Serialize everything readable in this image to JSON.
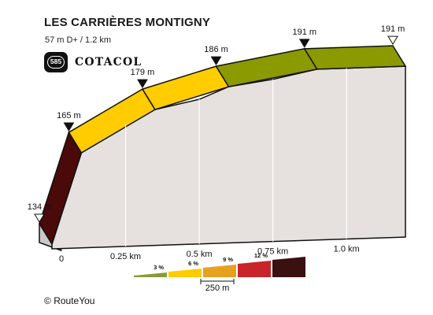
{
  "header": {
    "title": "LES CARRIÈRES MONTIGNY",
    "subtitle": "57 m D+ / 1.2 km"
  },
  "badge": {
    "number": "585",
    "brand": "COTACOL"
  },
  "footer": {
    "copyright_symbol": "©",
    "copyright_text": "RouteYou"
  },
  "chart_data": {
    "type": "area",
    "style": "3d-elevation-profile",
    "x_unit": "km",
    "y_unit": "m",
    "points": [
      {
        "x": 0.0,
        "y": 134,
        "label": "134 m"
      },
      {
        "x": 0.1,
        "y": 165,
        "label": "165 m"
      },
      {
        "x": 0.2,
        "y": 172
      },
      {
        "x": 0.35,
        "y": 179,
        "label": "179 m"
      },
      {
        "x": 0.5,
        "y": 182
      },
      {
        "x": 0.6,
        "y": 186,
        "label": "186 m"
      },
      {
        "x": 0.75,
        "y": 188
      },
      {
        "x": 0.9,
        "y": 191,
        "label": "191 m"
      },
      {
        "x": 1.0,
        "y": 191
      },
      {
        "x": 1.2,
        "y": 191,
        "label": "191 m"
      }
    ],
    "segments": [
      {
        "from": 0.0,
        "to": 0.1,
        "color": "#4a0a0a"
      },
      {
        "from": 0.1,
        "to": 0.35,
        "color": "#ffcc00"
      },
      {
        "from": 0.35,
        "to": 0.6,
        "color": "#ffcc00"
      },
      {
        "from": 0.6,
        "to": 0.9,
        "color": "#8a9a00"
      },
      {
        "from": 0.9,
        "to": 1.2,
        "color": "#8a9a00"
      }
    ],
    "x_ticks": [
      {
        "value": 0,
        "label": "0"
      },
      {
        "value": 0.25,
        "label": "0.25 km"
      },
      {
        "value": 0.5,
        "label": "0.5 km"
      },
      {
        "value": 0.75,
        "label": "0.75 km"
      },
      {
        "value": 1.0,
        "label": "1.0 km"
      }
    ],
    "legend": {
      "items": [
        {
          "label": "3 %",
          "color": "#8a9a3a"
        },
        {
          "label": "6 %",
          "color": "#ffcc00"
        },
        {
          "label": "9 %",
          "color": "#e8a020"
        },
        {
          "label": "12 %",
          "color": "#c8242a"
        },
        {
          "label": "",
          "color": "#3a1010"
        }
      ],
      "scale_label": "250 m"
    }
  }
}
